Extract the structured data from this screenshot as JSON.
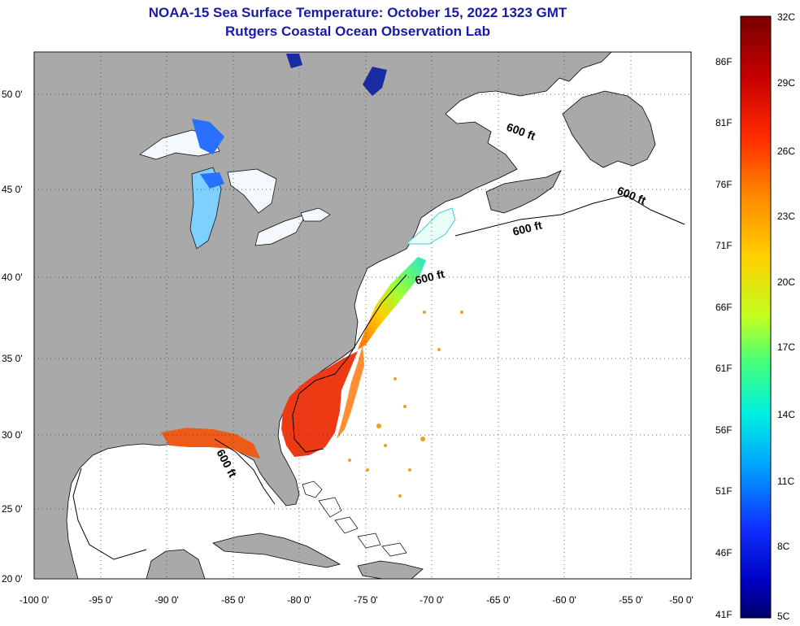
{
  "header": {
    "title_line1": "NOAA-15 Sea Surface Temperature:  October 15, 2022 1323 GMT",
    "title_line2": "Rutgers Coastal Ocean Observation Lab"
  },
  "axes": {
    "lon_labels": [
      "-100 0'",
      "-95 0'",
      "-90 0'",
      "-85 0'",
      "-80 0'",
      "-75 0'",
      "-70 0'",
      "-65 0'",
      "-60 0'",
      "-55 0'",
      "-50 0'"
    ],
    "lat_labels": [
      "50 0'",
      "45 0'",
      "40 0'",
      "35 0'",
      "30 0'",
      "25 0'",
      "20 0'"
    ]
  },
  "isobath": {
    "labels": [
      "600 ft",
      "600 ft",
      "600 ft",
      "600 ft",
      "600 ft"
    ]
  },
  "colorbar": {
    "celsius": [
      "32C",
      "29C",
      "26C",
      "23C",
      "20C",
      "17C",
      "14C",
      "11C",
      "8C",
      "5C"
    ],
    "fahrenheit": [
      "86F",
      "81F",
      "76F",
      "71F",
      "66F",
      "61F",
      "56F",
      "51F",
      "46F",
      "41F"
    ]
  },
  "colors": {
    "land": "#a9a9a9",
    "ocean": "#ffffff",
    "title": "#1a1aa6",
    "warm": "#e8340f",
    "cool": "#22d0c0"
  }
}
